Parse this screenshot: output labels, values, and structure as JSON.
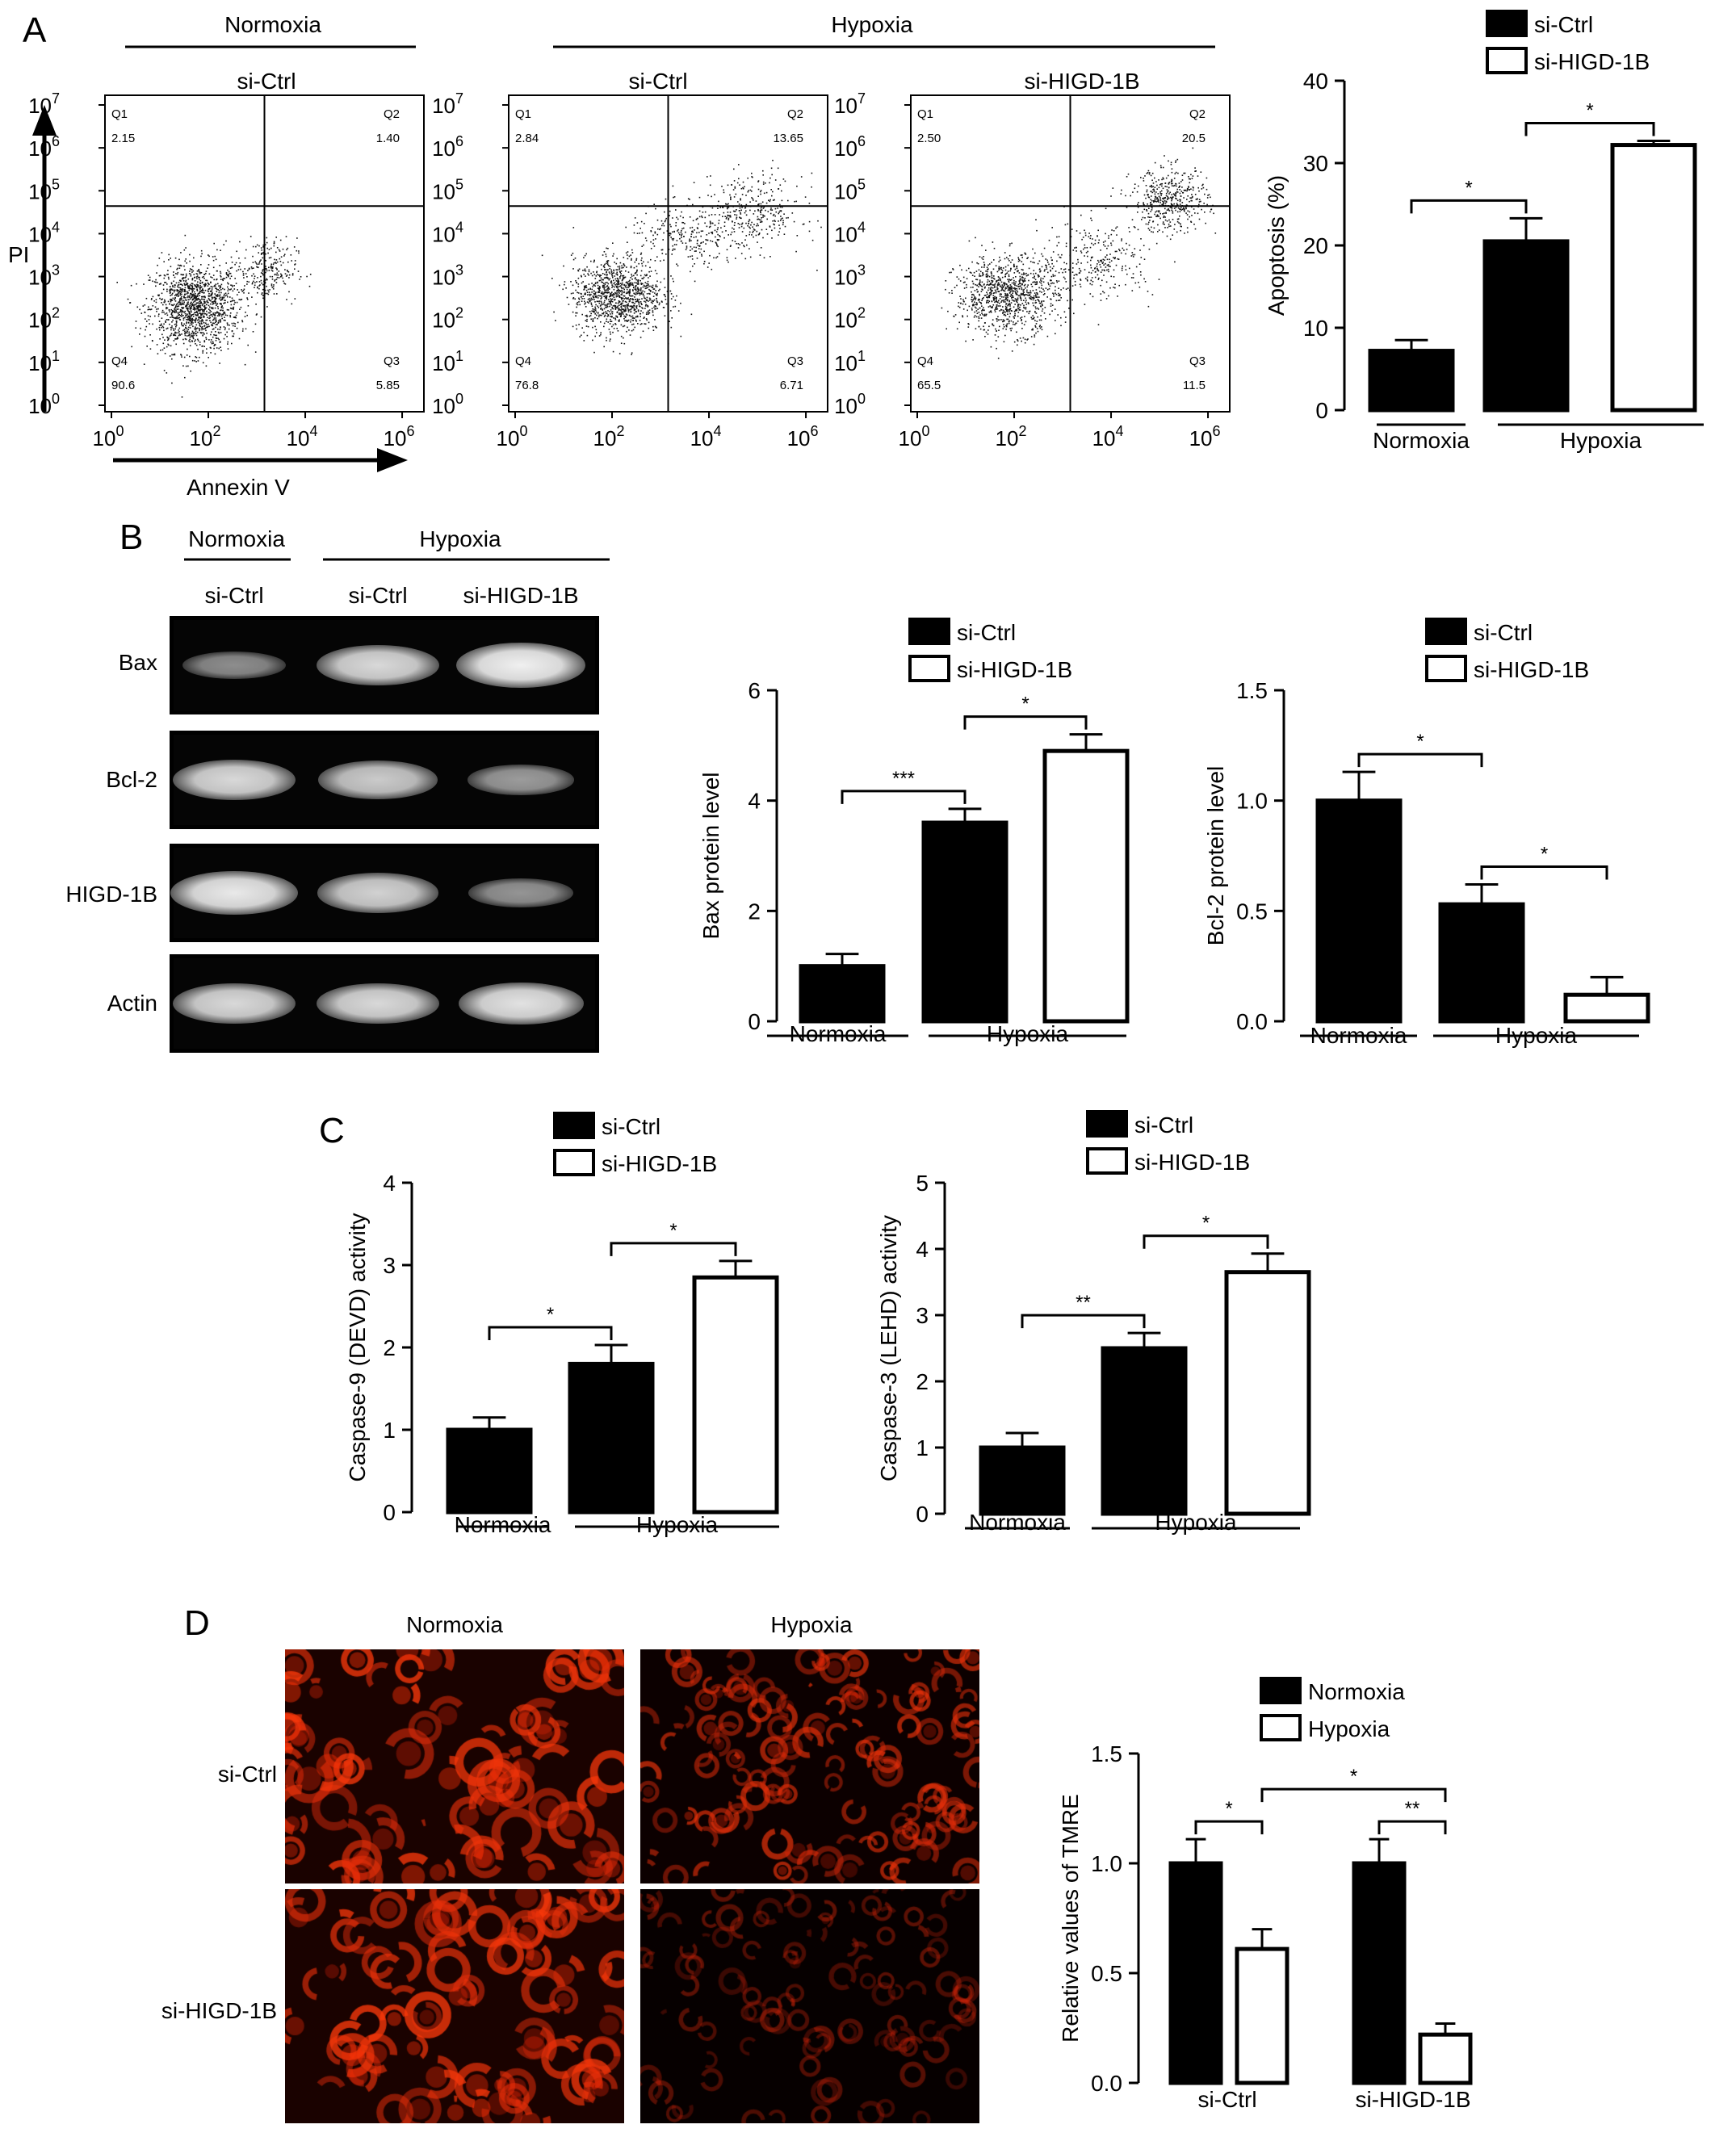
{
  "panels": {
    "A": "A",
    "B": "B",
    "C": "C",
    "D": "D"
  },
  "condition_labels": {
    "normoxia": "Normoxia",
    "hypoxia": "Hypoxia",
    "si_ctrl": "si-Ctrl",
    "si_higd": "si-HIGD-1B"
  },
  "flow": {
    "y_axis_label": "PI",
    "x_axis_label": "Annexin V",
    "tick_labels": [
      "10",
      "10",
      "10",
      "10",
      "10",
      "10",
      "10",
      "10"
    ],
    "tick_exponents": [
      "0",
      "1",
      "2",
      "3",
      "4",
      "5",
      "6",
      "7"
    ],
    "x_tick_labels": [
      "10",
      "10",
      "10",
      "10"
    ],
    "x_tick_exponents": [
      "0",
      "2",
      "4",
      "6"
    ],
    "plots": [
      {
        "title": "si-Ctrl",
        "q1": "Q1",
        "q1_value": "2.15",
        "q2": "Q2",
        "q2_value": "1.40",
        "q3": "Q3",
        "q3_value": "5.85",
        "q4": "Q4",
        "q4_value": "90.6"
      },
      {
        "title": "si-Ctrl",
        "q1": "Q1",
        "q1_value": "2.84",
        "q2": "Q2",
        "q2_value": "13.65",
        "q3": "Q3",
        "q3_value": "6.71",
        "q4": "Q4",
        "q4_value": "76.8"
      },
      {
        "title": "si-HIGD-1B",
        "q1": "Q1",
        "q1_value": "2.50",
        "q2": "Q2",
        "q2_value": "20.5",
        "q3": "Q3",
        "q3_value": "11.5",
        "q4": "Q4",
        "q4_value": "65.5"
      }
    ]
  },
  "blot": {
    "rows": [
      "Bax",
      "Bcl-2",
      "HIGD-1B",
      "Actin"
    ],
    "lane_labels": [
      "si-Ctrl",
      "si-Ctrl",
      "si-HIGD-1B"
    ],
    "band_intensity": [
      [
        0.35,
        0.85,
        1.0
      ],
      [
        0.85,
        0.75,
        0.45
      ],
      [
        0.95,
        0.8,
        0.4
      ],
      [
        0.85,
        0.85,
        0.9
      ]
    ]
  },
  "chart_data": [
    {
      "id": "apoptosis",
      "type": "bar",
      "categories": [
        "Normoxia",
        "Hypoxia"
      ],
      "group_labels": [
        "Normoxia",
        "Hypoxia"
      ],
      "legend": [
        "si-Ctrl",
        "si-HIGD-1B"
      ],
      "bars": [
        {
          "group": "Normoxia",
          "series": "si-Ctrl",
          "value": 7.2,
          "error": 1.3
        },
        {
          "group": "Hypoxia",
          "series": "si-Ctrl",
          "value": 20.5,
          "error": 2.8
        },
        {
          "group": "Hypoxia",
          "series": "si-HIGD-1B",
          "value": 32.2,
          "error": 0.5
        }
      ],
      "ylabel": "Apoptosis (%)",
      "ylim": [
        0,
        40
      ],
      "yticks": [
        "0",
        "10",
        "20",
        "30",
        "40"
      ],
      "significance": [
        {
          "from": 0,
          "to": 1,
          "label": "*"
        },
        {
          "from": 1,
          "to": 2,
          "label": "*"
        }
      ]
    },
    {
      "id": "bax",
      "type": "bar",
      "categories": [
        "Normoxia",
        "Hypoxia"
      ],
      "group_labels": [
        "Normoxia",
        "Hypoxia"
      ],
      "legend": [
        "si-Ctrl",
        "si-HIGD-1B"
      ],
      "bars": [
        {
          "group": "Normoxia",
          "series": "si-Ctrl",
          "value": 1.0,
          "error": 0.22
        },
        {
          "group": "Hypoxia",
          "series": "si-Ctrl",
          "value": 3.6,
          "error": 0.25
        },
        {
          "group": "Hypoxia",
          "series": "si-HIGD-1B",
          "value": 4.9,
          "error": 0.3
        }
      ],
      "ylabel": "Bax protein level",
      "ylim": [
        0,
        6
      ],
      "yticks": [
        "0",
        "2",
        "4",
        "6"
      ],
      "significance": [
        {
          "from": 0,
          "to": 1,
          "label": "***"
        },
        {
          "from": 1,
          "to": 2,
          "label": "*"
        }
      ]
    },
    {
      "id": "bcl2",
      "type": "bar",
      "categories": [
        "Normoxia",
        "Hypoxia"
      ],
      "group_labels": [
        "Normoxia",
        "Hypoxia"
      ],
      "legend": [
        "si-Ctrl",
        "si-HIGD-1B"
      ],
      "bars": [
        {
          "group": "Normoxia",
          "series": "si-Ctrl",
          "value": 1.0,
          "error": 0.13
        },
        {
          "group": "Hypoxia",
          "series": "si-Ctrl",
          "value": 0.53,
          "error": 0.09
        },
        {
          "group": "Hypoxia",
          "series": "si-HIGD-1B",
          "value": 0.12,
          "error": 0.08
        }
      ],
      "ylabel": "Bcl-2 protein level",
      "ylim": [
        0,
        1.5
      ],
      "yticks": [
        "0.0",
        "0.5",
        "1.0",
        "1.5"
      ],
      "significance": [
        {
          "from": 0,
          "to": 1,
          "label": "*"
        },
        {
          "from": 1,
          "to": 2,
          "label": "*"
        }
      ]
    },
    {
      "id": "caspase9",
      "type": "bar",
      "categories": [
        "Normoxia",
        "Hypoxia"
      ],
      "group_labels": [
        "Normoxia",
        "Hypoxia"
      ],
      "legend": [
        "si-Ctrl",
        "si-HIGD-1B"
      ],
      "bars": [
        {
          "group": "Normoxia",
          "series": "si-Ctrl",
          "value": 1.0,
          "error": 0.15
        },
        {
          "group": "Hypoxia",
          "series": "si-Ctrl",
          "value": 1.8,
          "error": 0.23
        },
        {
          "group": "Hypoxia",
          "series": "si-HIGD-1B",
          "value": 2.85,
          "error": 0.2
        }
      ],
      "ylabel": "Caspase-9 (DEVD) activity",
      "ylim": [
        0,
        4
      ],
      "yticks": [
        "0",
        "1",
        "2",
        "3",
        "4"
      ],
      "significance": [
        {
          "from": 0,
          "to": 1,
          "label": "*"
        },
        {
          "from": 1,
          "to": 2,
          "label": "*"
        }
      ]
    },
    {
      "id": "caspase3",
      "type": "bar",
      "categories": [
        "Normoxia",
        "Hypoxia"
      ],
      "group_labels": [
        "Normoxia",
        "Hypoxia"
      ],
      "legend": [
        "si-Ctrl",
        "si-HIGD-1B"
      ],
      "bars": [
        {
          "group": "Normoxia",
          "series": "si-Ctrl",
          "value": 1.0,
          "error": 0.22
        },
        {
          "group": "Hypoxia",
          "series": "si-Ctrl",
          "value": 2.5,
          "error": 0.23
        },
        {
          "group": "Hypoxia",
          "series": "si-HIGD-1B",
          "value": 3.65,
          "error": 0.28
        }
      ],
      "ylabel": "Caspase-3 (LEHD) activity",
      "ylim": [
        0,
        5
      ],
      "yticks": [
        "0",
        "1",
        "2",
        "3",
        "4",
        "5"
      ],
      "significance": [
        {
          "from": 0,
          "to": 1,
          "label": "**"
        },
        {
          "from": 1,
          "to": 2,
          "label": "*"
        }
      ]
    },
    {
      "id": "tmre",
      "type": "bar",
      "categories": [
        "si-Ctrl",
        "si-HIGD-1B"
      ],
      "group_labels": [
        "si-Ctrl",
        "si-HIGD-1B"
      ],
      "legend": [
        "Normoxia",
        "Hypoxia"
      ],
      "bars": [
        {
          "group": "si-Ctrl",
          "series": "Normoxia",
          "value": 1.0,
          "error": 0.11
        },
        {
          "group": "si-Ctrl",
          "series": "Hypoxia",
          "value": 0.61,
          "error": 0.09
        },
        {
          "group": "si-HIGD-1B",
          "series": "Normoxia",
          "value": 1.0,
          "error": 0.11
        },
        {
          "group": "si-HIGD-1B",
          "series": "Hypoxia",
          "value": 0.22,
          "error": 0.05
        }
      ],
      "ylabel": "Relative values of TMRE",
      "ylim": [
        0,
        1.5
      ],
      "yticks": [
        "0.0",
        "0.5",
        "1.0",
        "1.5"
      ],
      "significance": [
        {
          "from": 0,
          "to": 1,
          "label": "*"
        },
        {
          "from": 2,
          "to": 3,
          "label": "**"
        },
        {
          "from": 1,
          "to": 3,
          "label": "*"
        }
      ]
    }
  ],
  "colors": {
    "filled_bar": "#000000",
    "open_bar": "#ffffff",
    "fluorescence": "#e8190a"
  }
}
